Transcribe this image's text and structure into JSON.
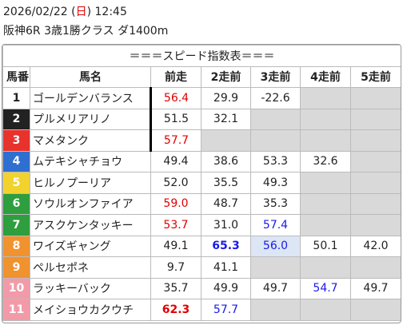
{
  "header": {
    "line1": [
      "2026/02/22 (",
      "日",
      ") 12:45"
    ],
    "line1_colors": [
      "#222222",
      "#e00000",
      "#222222"
    ],
    "line2": "阪神6R 3歳1勝クラス ダ1400m"
  },
  "table": {
    "title": "＝＝＝スピード指数表＝＝＝",
    "columns": [
      "馬番",
      "馬名",
      "前走",
      "2走前",
      "3走前",
      "4走前",
      "5走前"
    ],
    "rows": [
      {
        "no": "1",
        "frame_bg": "#ffffff",
        "frame_fg": "#222222",
        "name": "ゴールデンバランス",
        "cells": [
          {
            "text": "56.4",
            "color": "#e00000"
          },
          "29.9",
          "-22.6",
          null,
          null
        ]
      },
      {
        "no": "2",
        "frame_bg": "#222222",
        "frame_fg": "#ffffff",
        "name": "プルメリアリノ",
        "cells": [
          "51.5",
          "32.1",
          null,
          null,
          null
        ]
      },
      {
        "no": "3",
        "frame_bg": "#e8322c",
        "frame_fg": "#ffffff",
        "name": "マメタンク",
        "cells": [
          {
            "text": "57.7",
            "color": "#e00000"
          },
          null,
          null,
          null,
          null
        ]
      },
      {
        "no": "4",
        "frame_bg": "#2f6fd0",
        "frame_fg": "#ffffff",
        "name": "ムテキシャチョウ",
        "cells": [
          "49.4",
          "38.6",
          "53.3",
          "32.6",
          null
        ]
      },
      {
        "no": "5",
        "frame_bg": "#f2d22e",
        "frame_fg": "#ffffff",
        "name": "ヒルノプーリア",
        "cells": [
          "52.0",
          "35.5",
          "49.3",
          null,
          null
        ]
      },
      {
        "no": "6",
        "frame_bg": "#2e9e3e",
        "frame_fg": "#ffffff",
        "name": "ソウルオンファイア",
        "cells": [
          {
            "text": "59.0",
            "color": "#e00000"
          },
          "48.7",
          "35.3",
          null,
          null
        ]
      },
      {
        "no": "7",
        "frame_bg": "#2e9e3e",
        "frame_fg": "#ffffff",
        "name": "アスクケンタッキー",
        "cells": [
          {
            "text": "53.7",
            "color": "#e00000"
          },
          "31.0",
          {
            "text": "57.4",
            "color": "#1a1ae6"
          },
          null,
          null
        ]
      },
      {
        "no": "8",
        "frame_bg": "#f0922e",
        "frame_fg": "#ffffff",
        "name": "ワイズギャング",
        "cells": [
          "49.1",
          {
            "text": "65.3",
            "color": "#1a1ae6",
            "bold": true
          },
          {
            "text": "56.0",
            "color": "#1a1ae6",
            "bg": "#dce6f5"
          },
          "50.1",
          "42.0"
        ]
      },
      {
        "no": "9",
        "frame_bg": "#f0922e",
        "frame_fg": "#ffffff",
        "name": "ペルセポネ",
        "cells": [
          "9.7",
          "41.1",
          null,
          null,
          null
        ]
      },
      {
        "no": "10",
        "frame_bg": "#f39aa8",
        "frame_fg": "#ffffff",
        "name": "ラッキーバック",
        "cells": [
          "35.7",
          "49.9",
          "49.7",
          {
            "text": "54.7",
            "color": "#1a1ae6"
          },
          "49.7"
        ]
      },
      {
        "no": "11",
        "frame_bg": "#f39aa8",
        "frame_fg": "#ffffff",
        "name": "メイショウカクウチ",
        "cells": [
          {
            "text": "62.3",
            "color": "#e00000",
            "bold": true
          },
          {
            "text": "57.7",
            "color": "#1a1ae6"
          },
          null,
          null,
          null
        ]
      }
    ]
  }
}
